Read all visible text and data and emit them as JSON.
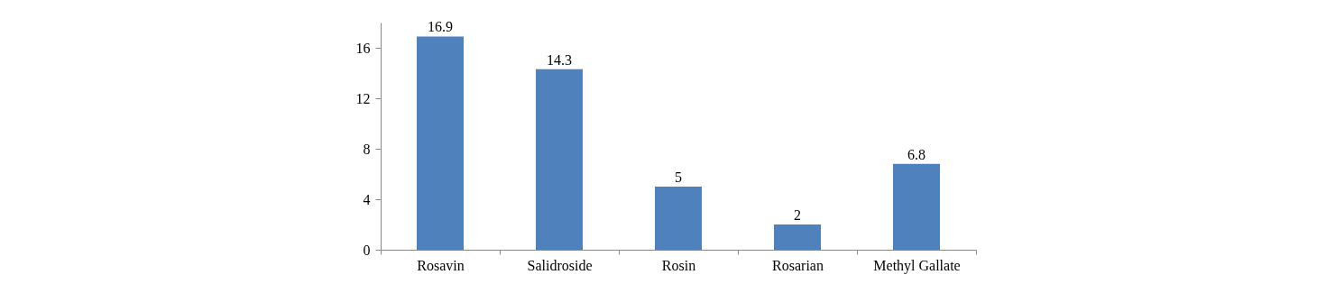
{
  "chart_data": {
    "type": "bar",
    "categories": [
      "Rosavin",
      "Salidroside",
      "Rosin",
      "Rosarian",
      "Methyl Gallate"
    ],
    "values": [
      16.9,
      14.3,
      5,
      2,
      6.8
    ],
    "color": "#4f81bd",
    "ylim": [
      0,
      18
    ],
    "yticks": [
      0,
      4,
      8,
      12,
      16
    ],
    "grid": false,
    "data_labels": true
  }
}
